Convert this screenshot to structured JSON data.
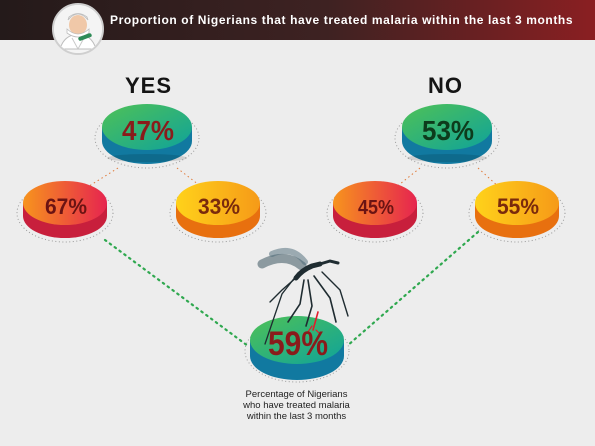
{
  "header": {
    "title": "Proportion of Nigerians that have treated malaria within the last 3 months",
    "logo_icon": "doctor-avatar-icon"
  },
  "groups": {
    "yes_label": "YES",
    "no_label": "NO"
  },
  "caption": {
    "lines": [
      "Percentage of Nigerians",
      "who have treated malaria",
      "within the last 3 months"
    ]
  },
  "chart_data": {
    "type": "table",
    "nodes": [
      {
        "id": "total",
        "label": "59%",
        "value": 59,
        "color": "green-teal"
      },
      {
        "id": "yes",
        "group": "YES",
        "label": "47%",
        "value": 47,
        "color": "green-teal"
      },
      {
        "id": "yes-a",
        "group": "YES",
        "label": "67%",
        "value": 67,
        "color": "red-orange"
      },
      {
        "id": "yes-b",
        "group": "YES",
        "label": "33%",
        "value": 33,
        "color": "yellow-orange"
      },
      {
        "id": "no",
        "group": "NO",
        "label": "53%",
        "value": 53,
        "color": "green-teal"
      },
      {
        "id": "no-a",
        "group": "NO",
        "label": "45%",
        "value": 45,
        "color": "red-orange"
      },
      {
        "id": "no-b",
        "group": "NO",
        "label": "55%",
        "value": 55,
        "color": "yellow-orange"
      }
    ],
    "decoration": {
      "icon": "mosquito-icon"
    }
  }
}
